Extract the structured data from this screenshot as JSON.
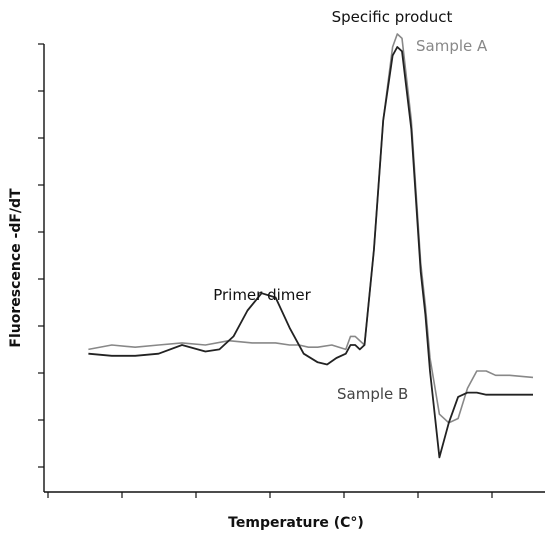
{
  "chart_data": {
    "type": "line",
    "title": "",
    "xlabel": "Temperature (C°)",
    "ylabel": "Fluorescence -dF/dT",
    "x_tick_labels": [],
    "y_tick_labels": [],
    "xlim": [
      0,
      100
    ],
    "ylim": [
      0,
      100
    ],
    "grid": false,
    "legend": "none",
    "series": [
      {
        "name": "Sample A",
        "color": "#888888",
        "x": [
          5,
          10,
          15,
          20,
          25,
          30,
          35,
          40,
          45,
          48,
          50,
          52,
          54,
          57,
          60,
          61,
          62,
          63,
          64,
          66,
          68,
          70,
          71,
          72,
          74,
          76,
          77,
          78,
          80,
          82,
          84,
          86,
          88,
          90,
          92,
          95,
          100
        ],
        "y": [
          27,
          28,
          27.5,
          28,
          28.5,
          28,
          29,
          28.5,
          28.5,
          28,
          28,
          27.5,
          27.5,
          28,
          27,
          30,
          30,
          29,
          28,
          50,
          80,
          97,
          100,
          99,
          80,
          47,
          37,
          25,
          12,
          10,
          11,
          18,
          22,
          22,
          21,
          21,
          20.5
        ]
      },
      {
        "name": "Sample B",
        "color": "#222222",
        "x": [
          5,
          10,
          15,
          20,
          25,
          30,
          33,
          36,
          39,
          42,
          45,
          48,
          51,
          54,
          56,
          58,
          60,
          61,
          62,
          63,
          64,
          66,
          68,
          70,
          71,
          72,
          74,
          76,
          77,
          78,
          80,
          82,
          84,
          86,
          88,
          90,
          92,
          95,
          100
        ],
        "y": [
          26,
          25.5,
          25.5,
          26,
          28,
          26.5,
          27,
          30,
          36,
          40,
          39,
          32,
          26,
          24,
          23.5,
          25,
          26,
          28,
          28,
          27,
          28,
          50,
          80,
          95,
          97,
          96,
          78,
          45,
          35,
          22,
          2,
          10,
          16,
          17,
          17,
          16.5,
          16.5,
          16.5,
          16.5
        ]
      }
    ],
    "annotations": [
      "Specific product",
      "Sample A",
      "Primer dimer",
      "Sample B"
    ]
  }
}
